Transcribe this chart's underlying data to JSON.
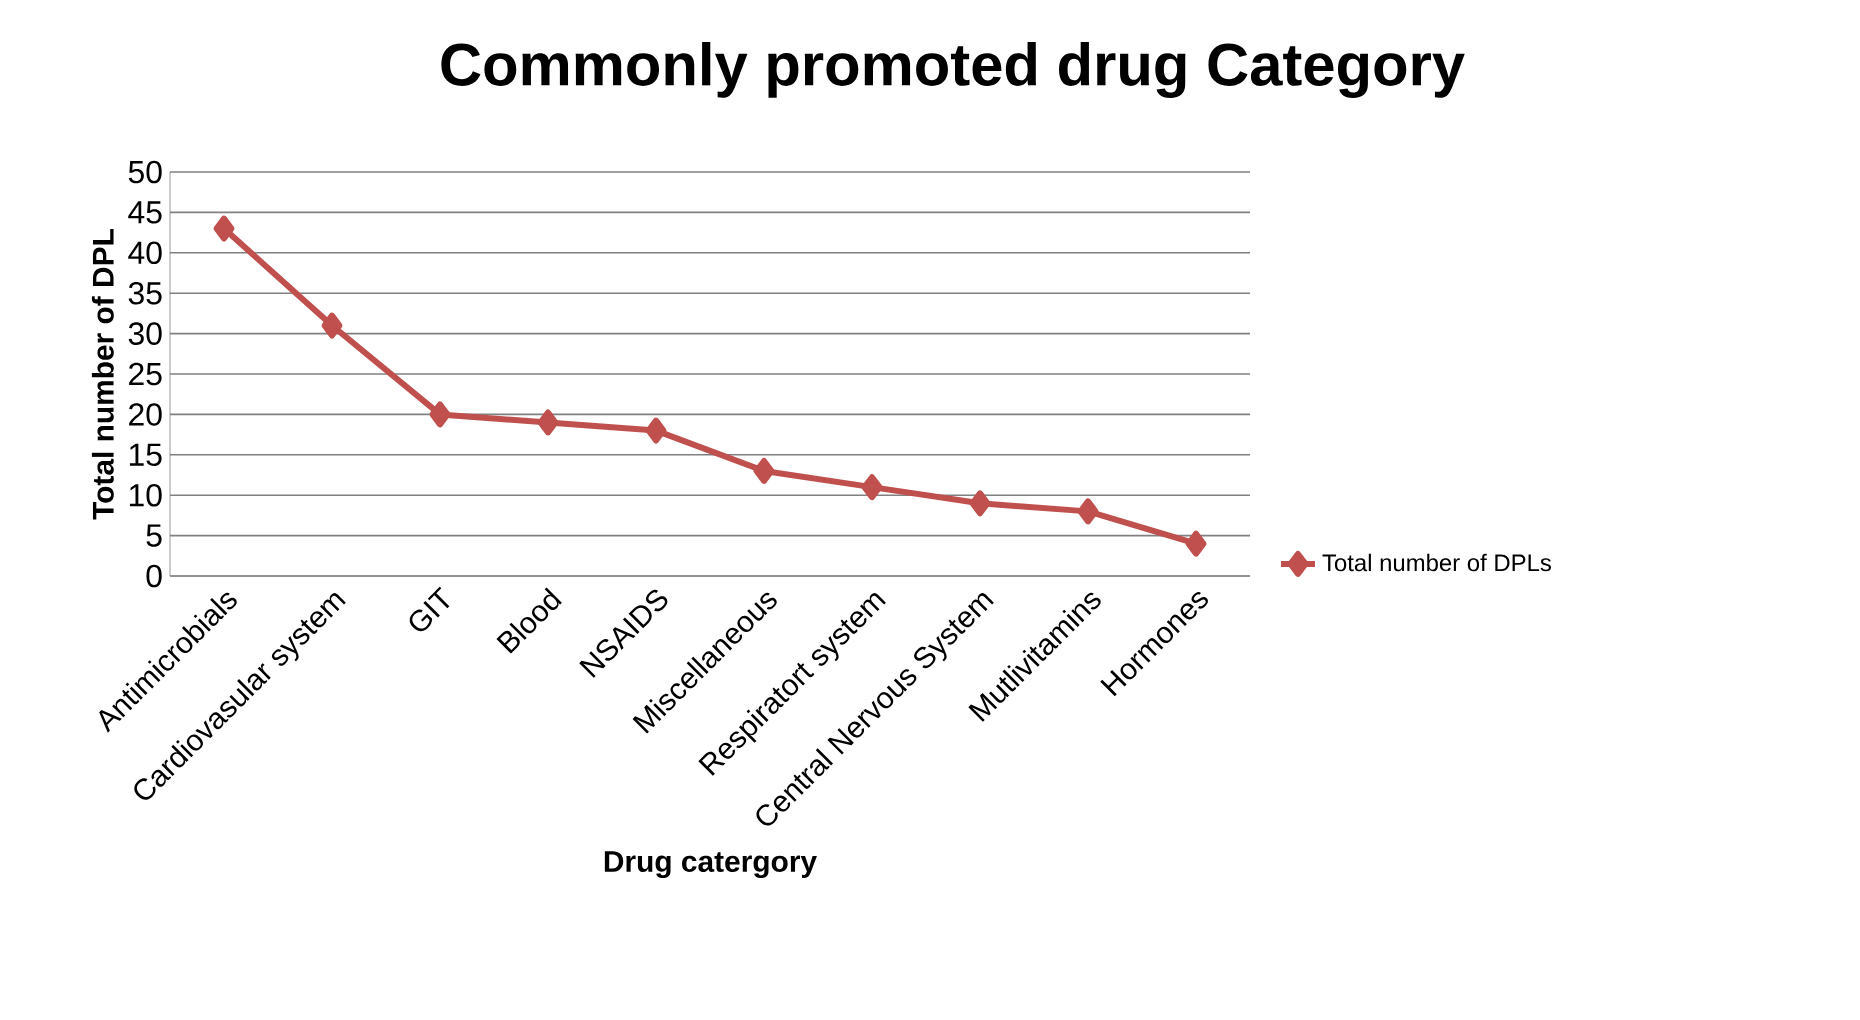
{
  "chart_data": {
    "type": "line",
    "title": "Commonly promoted drug Category",
    "xlabel": "Drug catergory",
    "ylabel": "Total number of DPL",
    "categories": [
      "Antimicrobials",
      "Cardiovasular system",
      "GIT",
      "Blood",
      "NSAIDS",
      "Miscellaneous",
      "Respiratort system",
      "Central Nervous System",
      "Mutlivitamins",
      "Hormones"
    ],
    "series": [
      {
        "name": "Total number of DPLs",
        "color": "#c0504d",
        "values": [
          43,
          31,
          20,
          19,
          18,
          13,
          11,
          9,
          8,
          4
        ]
      }
    ],
    "ylim": [
      0,
      50
    ],
    "yticks": [
      0,
      5,
      10,
      15,
      20,
      25,
      30,
      35,
      40,
      45,
      50
    ],
    "grid": "y",
    "legend": "right",
    "marker": "diamond"
  }
}
